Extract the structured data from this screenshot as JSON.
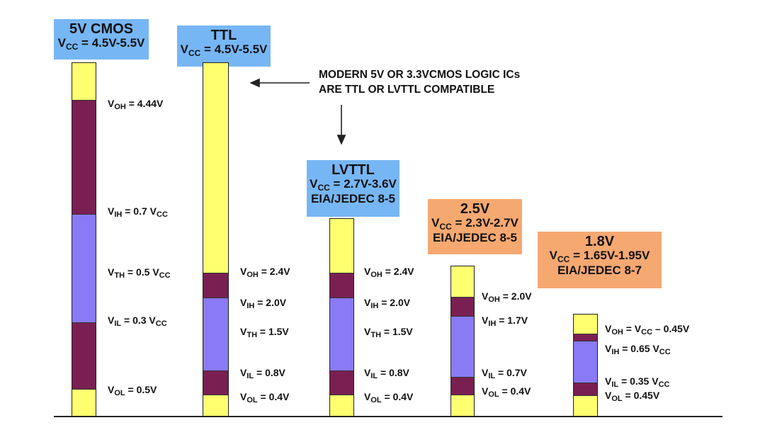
{
  "columns": [
    {
      "name": "5V CMOS",
      "vcc": "= 4.5V-5.5V",
      "std": "",
      "box_color": "#77b6f5",
      "segments": [
        "yellow",
        "maroon",
        "violet",
        "maroon",
        "yellow"
      ],
      "labels": [
        {
          "sym": "OH",
          "text": "= 4.44V"
        },
        {
          "sym": "IH",
          "text": "= 0.7 V",
          "sub2": "CC"
        },
        {
          "sym": "TH",
          "text": "= 0.5 V",
          "sub2": "CC"
        },
        {
          "sym": "IL",
          "text": "= 0.3 V",
          "sub2": "CC"
        },
        {
          "sym": "OL",
          "text": "= 0.5V"
        }
      ]
    },
    {
      "name": "TTL",
      "vcc": "= 4.5V-5.5V",
      "std": "",
      "box_color": "#77b6f5",
      "segments": [
        "yellow",
        "maroon",
        "violet",
        "maroon",
        "yellow"
      ],
      "labels": [
        {
          "sym": "OH",
          "text": "= 2.4V"
        },
        {
          "sym": "IH",
          "text": "= 2.0V"
        },
        {
          "sym": "TH",
          "text": "= 1.5V"
        },
        {
          "sym": "IL",
          "text": "= 0.8V"
        },
        {
          "sym": "OL",
          "text": "= 0.4V"
        }
      ]
    },
    {
      "name": "LVTTL",
      "vcc": "= 2.7V-3.6V",
      "std": "EIA/JEDEC 8-5",
      "box_color": "#77b6f5",
      "segments": [
        "yellow",
        "maroon",
        "violet",
        "maroon",
        "yellow"
      ],
      "labels": [
        {
          "sym": "OH",
          "text": "= 2.4V"
        },
        {
          "sym": "IH",
          "text": "= 2.0V"
        },
        {
          "sym": "TH",
          "text": "= 1.5V"
        },
        {
          "sym": "IL",
          "text": "= 0.8V"
        },
        {
          "sym": "OL",
          "text": "= 0.4V"
        }
      ]
    },
    {
      "name": "2.5V",
      "vcc": "= 2.3V-2.7V",
      "std": "EIA/JEDEC 8-5",
      "box_color": "#f6a871",
      "segments": [
        "yellow",
        "maroon",
        "violet",
        "maroon",
        "yellow"
      ],
      "labels": [
        {
          "sym": "OH",
          "text": "= 2.0V"
        },
        {
          "sym": "IH",
          "text": "= 1.7V"
        },
        {
          "sym": "IL",
          "text": "= 0.7V"
        },
        {
          "sym": "OL",
          "text": "= 0.4V"
        }
      ]
    },
    {
      "name": "1.8V",
      "vcc": "= 1.65V-1.95V",
      "std": "EIA/JEDEC 8-7",
      "box_color": "#f6a871",
      "segments": [
        "yellow",
        "maroon",
        "violet",
        "maroon",
        "yellow"
      ],
      "labels": [
        {
          "sym": "OH",
          "text": "= V",
          "sub2": "CC",
          "tail": " – 0.45V"
        },
        {
          "sym": "IH",
          "text": "= 0.65 V",
          "sub2": "CC"
        },
        {
          "sym": "IL",
          "text": "= 0.35 V",
          "sub2": "CC"
        },
        {
          "sym": "OL",
          "text": "= 0.45V"
        }
      ]
    }
  ],
  "note": {
    "line1": "MODERN 5V OR 3.3VCMOS LOGIC ICs",
    "line2": "ARE TTL OR  LVTTL COMPATIBLE"
  },
  "symbols": {
    "v": "V",
    "cc": "CC"
  }
}
